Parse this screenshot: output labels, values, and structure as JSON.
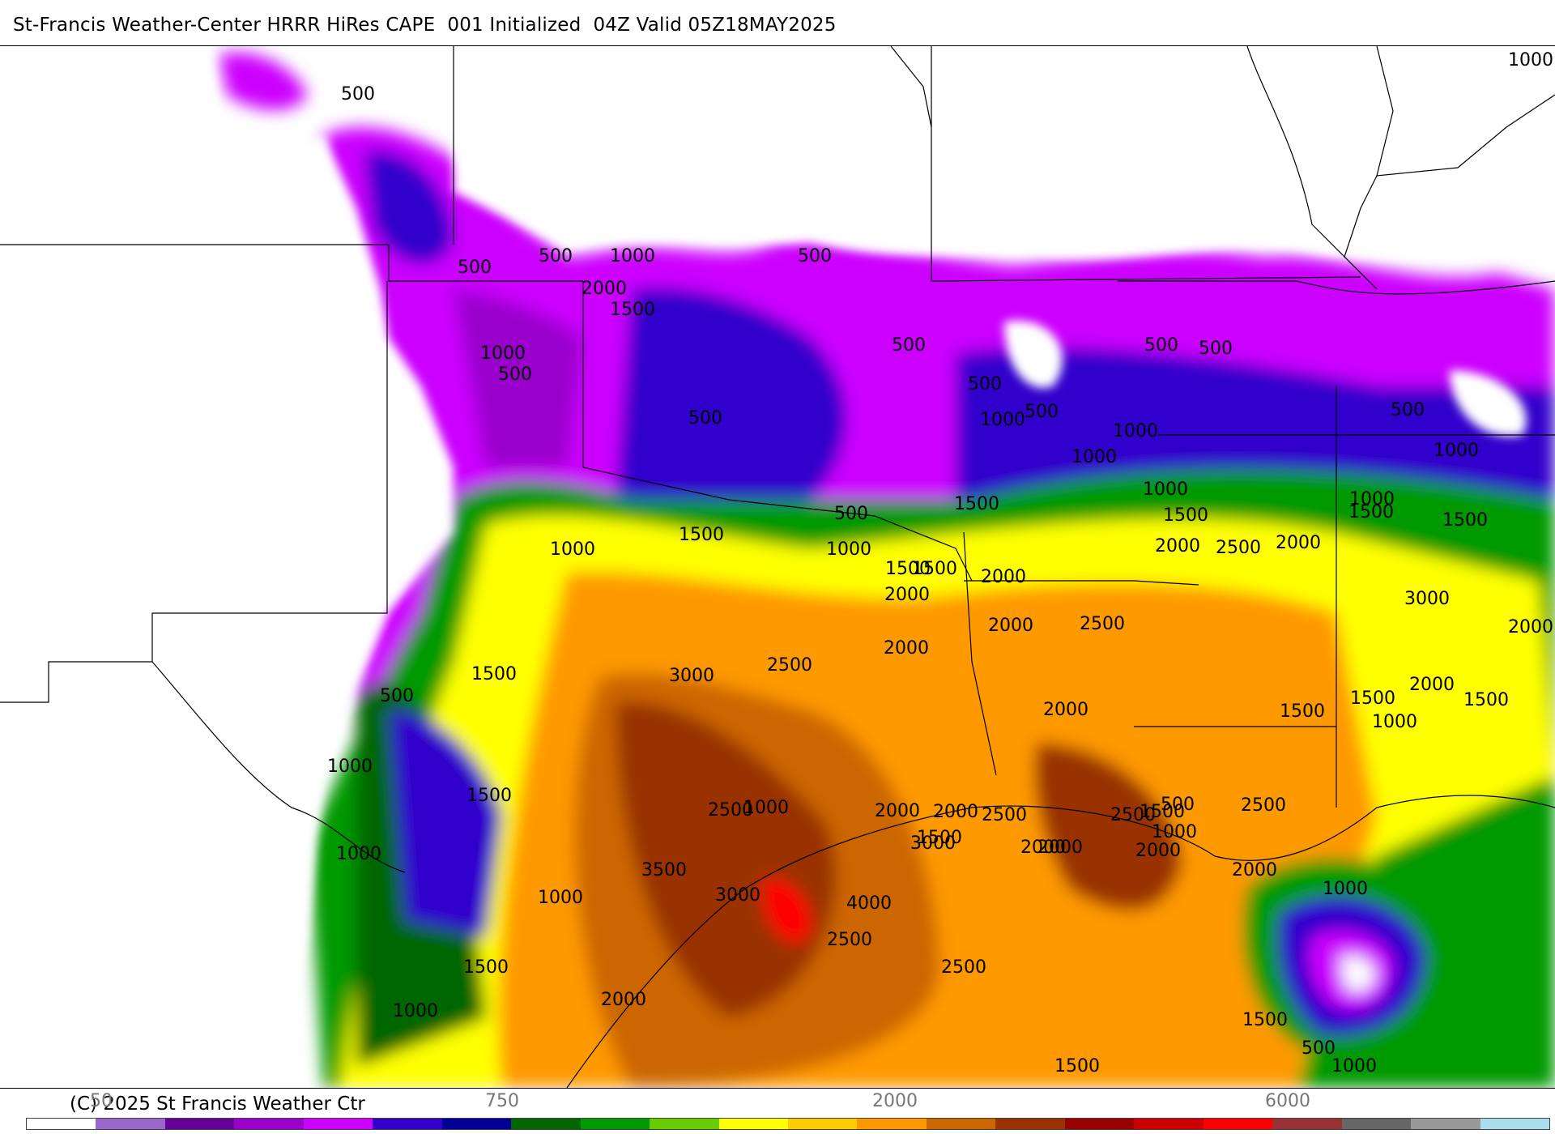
{
  "title": "St-Francis Weather-Center HRRR HiRes CAPE  001 Initialized  04Z Valid 05Z18MAY2025",
  "copyright": "(C) 2025 St Francis Weather Ctr",
  "colorbar": {
    "colors": [
      "#ffffff",
      "#9966cc",
      "#660099",
      "#9900cc",
      "#cc00ff",
      "#3300cc",
      "#000099",
      "#006600",
      "#009900",
      "#66cc00",
      "#ffff00",
      "#ffcc00",
      "#ff9900",
      "#cc6600",
      "#993300",
      "#990000",
      "#cc0000",
      "#ff0000",
      "#993333",
      "#666666",
      "#999999",
      "#aaddee"
    ],
    "ticks": [
      "50",
      "750",
      "2000",
      "6000"
    ]
  },
  "contour_labels": [
    {
      "id": "l1",
      "text": "500"
    },
    {
      "id": "l2",
      "text": "500"
    },
    {
      "id": "l3",
      "text": "500"
    },
    {
      "id": "l4",
      "text": "1000"
    },
    {
      "id": "l5",
      "text": "500"
    },
    {
      "id": "l6",
      "text": "2000"
    },
    {
      "id": "l7",
      "text": "1500"
    },
    {
      "id": "l8",
      "text": "1000"
    },
    {
      "id": "l9",
      "text": "500"
    },
    {
      "id": "l10",
      "text": "500"
    },
    {
      "id": "l11",
      "text": "500"
    },
    {
      "id": "l12",
      "text": "500"
    },
    {
      "id": "l13",
      "text": "500"
    },
    {
      "id": "l14",
      "text": "500"
    },
    {
      "id": "l15",
      "text": "1000"
    },
    {
      "id": "l16",
      "text": "500"
    },
    {
      "id": "l17",
      "text": "1000"
    },
    {
      "id": "l18",
      "text": "1000"
    },
    {
      "id": "l19",
      "text": "1000"
    },
    {
      "id": "l20",
      "text": "500"
    },
    {
      "id": "l21",
      "text": "1000"
    },
    {
      "id": "l22",
      "text": "1500"
    },
    {
      "id": "l23",
      "text": "1500"
    },
    {
      "id": "l24",
      "text": "1000"
    },
    {
      "id": "l25",
      "text": "1500"
    },
    {
      "id": "l26",
      "text": "2000"
    },
    {
      "id": "l27",
      "text": "2500"
    },
    {
      "id": "l28",
      "text": "2000"
    },
    {
      "id": "l29",
      "text": "1500"
    },
    {
      "id": "l30",
      "text": "1000"
    },
    {
      "id": "l31",
      "text": "1500"
    },
    {
      "id": "l32",
      "text": "1500"
    },
    {
      "id": "l33",
      "text": "1000"
    },
    {
      "id": "l34",
      "text": "500"
    },
    {
      "id": "l35",
      "text": "1500"
    },
    {
      "id": "l36",
      "text": "2000"
    },
    {
      "id": "l37",
      "text": "2500"
    },
    {
      "id": "l38",
      "text": "3000"
    },
    {
      "id": "l39",
      "text": "2000"
    },
    {
      "id": "l40",
      "text": "2000"
    },
    {
      "id": "l41",
      "text": "2000"
    },
    {
      "id": "l42",
      "text": "2000"
    },
    {
      "id": "l43",
      "text": "2500"
    },
    {
      "id": "l44",
      "text": "2000"
    },
    {
      "id": "l45",
      "text": "1500"
    },
    {
      "id": "l46",
      "text": "1500"
    },
    {
      "id": "l47",
      "text": "1000"
    },
    {
      "id": "l48",
      "text": "1500"
    },
    {
      "id": "l49",
      "text": "1000"
    },
    {
      "id": "l50",
      "text": "2000"
    },
    {
      "id": "l51",
      "text": "2500"
    },
    {
      "id": "l52",
      "text": "2500"
    },
    {
      "id": "l53",
      "text": "3000"
    },
    {
      "id": "l54",
      "text": "1500"
    },
    {
      "id": "l55",
      "text": "500"
    },
    {
      "id": "l56",
      "text": "1000"
    },
    {
      "id": "l57",
      "text": "1000"
    },
    {
      "id": "l58",
      "text": "1500"
    },
    {
      "id": "l59",
      "text": "3500"
    },
    {
      "id": "l60",
      "text": "4000"
    },
    {
      "id": "l61",
      "text": "3000"
    },
    {
      "id": "l62",
      "text": "3000"
    },
    {
      "id": "l63",
      "text": "2500"
    },
    {
      "id": "l64",
      "text": "1000"
    },
    {
      "id": "l65",
      "text": "2000"
    },
    {
      "id": "l66",
      "text": "2000"
    },
    {
      "id": "l67",
      "text": "1500"
    },
    {
      "id": "l68",
      "text": "1000"
    },
    {
      "id": "l69",
      "text": "500"
    },
    {
      "id": "l70",
      "text": "1000"
    },
    {
      "id": "l71",
      "text": "1500"
    },
    {
      "id": "l72",
      "text": "2000"
    },
    {
      "id": "l73",
      "text": "2500"
    },
    {
      "id": "l74",
      "text": "2000"
    },
    {
      "id": "l75",
      "text": "2500"
    },
    {
      "id": "l76",
      "text": "2000"
    },
    {
      "id": "l77",
      "text": "2000"
    },
    {
      "id": "l78",
      "text": "1000"
    },
    {
      "id": "l79",
      "text": "1500"
    },
    {
      "id": "l80",
      "text": "500"
    },
    {
      "id": "l81",
      "text": "1000"
    },
    {
      "id": "l82",
      "text": "1500"
    },
    {
      "id": "l83",
      "text": "2500"
    },
    {
      "id": "l84",
      "text": "2000"
    },
    {
      "id": "l85",
      "text": "1500"
    },
    {
      "id": "l86",
      "text": "1000"
    }
  ]
}
